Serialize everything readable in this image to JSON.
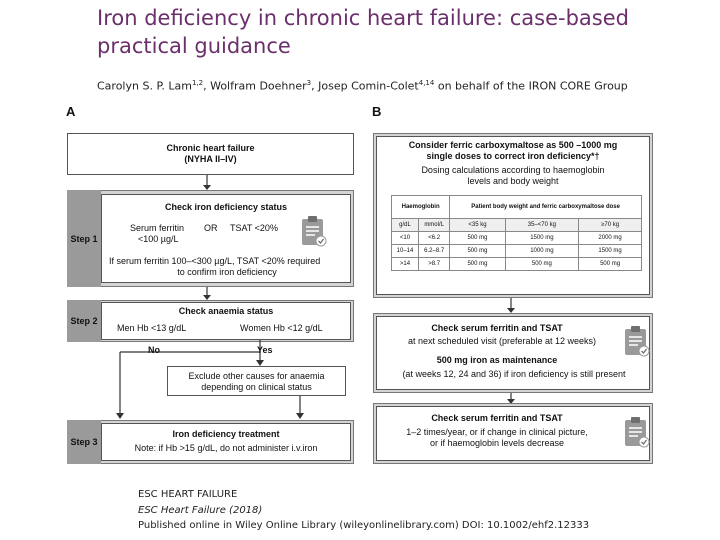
{
  "title": "Iron deficiency in chronic heart failure: case-based practical guidance",
  "authors": {
    "a1": "Carolyn S. P. Lam",
    "a1_sup": "1,2",
    "a2": ", Wolfram Doehner",
    "a2_sup": "3",
    "a3": ", Josep Comin-Colet",
    "a3_sup": "4,14",
    "a4": " on behalf of the IRON CORE Group"
  },
  "panelA": {
    "label": "A",
    "hf_title": "Chronic heart failure",
    "hf_sub": "(NYHA II–IV)",
    "step1": "Step 1",
    "check_iron": "Check iron deficiency status",
    "ferritin": "Serum ferritin",
    "or": "OR",
    "tsat": "TSAT <20%",
    "ferritin_val": "<100 µg/L",
    "ferritin_note": "If serum ferritin 100–<300 µg/L, TSAT <20% required",
    "ferritin_note2": "to confirm iron deficiency",
    "step2": "Step 2",
    "check_anaemia": "Check anaemia status",
    "men": "Men Hb <13 g/dL",
    "women": "Women Hb <12 g/dL",
    "no": "No",
    "yes": "Yes",
    "exclude1": "Exclude other causes for anaemia",
    "exclude2": "depending on clinical status",
    "step3": "Step 3",
    "treatment": "Iron deficiency treatment",
    "note": "Note: if Hb >15 g/dL, do not administer i.v.iron"
  },
  "panelB": {
    "label": "B",
    "consider1": "Consider ferric carboxymaltose as 500 –1000 mg",
    "consider2": "single doses to correct iron deficiency*†",
    "dosing1": "Dosing calculations according to haemoglobin",
    "dosing2": "levels and body weight",
    "table": {
      "h_hb": "Haemoglobin",
      "h_pbw": "Patient body weight and ferric carboxymaltose dose",
      "sub": [
        "g/dL",
        "mmol/L",
        "<35 kg",
        "35–<70 kg",
        "≥70 kg"
      ],
      "rows": [
        [
          "<10",
          "<6.2",
          "500 mg",
          "1500 mg",
          "2000 mg"
        ],
        [
          "10–14",
          "6.2–8.7",
          "500 mg",
          "1000 mg",
          "1500 mg"
        ],
        [
          ">14",
          ">8.7",
          "500 mg",
          "500 mg",
          "500 mg"
        ]
      ]
    },
    "check1_title": "Check serum ferritin and TSAT",
    "check1_sub": "at next scheduled visit (preferable at 12 weeks)",
    "maint": "500 mg iron as maintenance",
    "maint_sub": "(at weeks 12, 24 and 36) if iron deficiency is still present",
    "check2_title": "Check serum ferritin and TSAT",
    "check2_sub1": "1–2 times/year, or if change in clinical picture,",
    "check2_sub2": "or if haemoglobin levels decrease"
  },
  "footer": {
    "l1": "ESC HEART FAILURE",
    "l2": "ESC Heart Failure (2018)",
    "l3": "Published online in Wiley Online Library (wileyonlinelibrary.com) DOI: 10.1002/ehf2.12333"
  },
  "colors": {
    "title": "#6b2f6b",
    "step_bg": "#9a9a9a",
    "panel_bg": "#d4d4d4"
  }
}
